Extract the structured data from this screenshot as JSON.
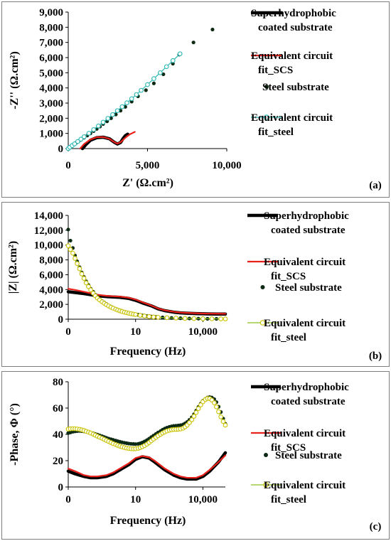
{
  "colors": {
    "scs": "#000000",
    "fit_scs": "#e8211b",
    "steel": "#0d2a14",
    "fit_steel_a": "#2ab7b2",
    "fit_steel": "#c9c200",
    "fit_steel_line": "#86c21e"
  },
  "legend": {
    "scs": [
      "Superhydrophobic",
      "coated substrate"
    ],
    "fit_scs": [
      "Equivalent circuit",
      "fit_SCS"
    ],
    "steel": [
      "Steel substrate"
    ],
    "fit_steel": [
      "Equivalent circuit",
      "fit_steel"
    ]
  },
  "chart_data": [
    {
      "panel_label": "(a)",
      "type": "scatter",
      "xlabel": "Z' (Ω.cm²)",
      "ylabel": "-Z'' (Ω.cm²)",
      "xlim": [
        0,
        10000
      ],
      "ylim": [
        0,
        9000
      ],
      "x_ticks": [
        0,
        5000,
        10000
      ],
      "x_tick_labels": [
        "0",
        "5,000",
        "10,000"
      ],
      "y_ticks": [
        0,
        1000,
        2000,
        3000,
        4000,
        5000,
        6000,
        7000,
        8000,
        9000
      ],
      "y_tick_labels": [
        "0",
        "1,000",
        "2,000",
        "3,000",
        "4,000",
        "5,000",
        "6,000",
        "7,000",
        "8,000",
        "9,000"
      ],
      "legend_position": "right",
      "series": [
        {
          "name": "Superhydrophobic coated substrate",
          "style": "thick-line",
          "x": [
            900,
            1100,
            1400,
            1800,
            2200,
            2600,
            2900,
            3100,
            3300,
            3450,
            3600,
            3750
          ],
          "y": [
            0,
            250,
            550,
            720,
            750,
            650,
            420,
            300,
            400,
            650,
            850,
            950
          ]
        },
        {
          "name": "Equivalent circuit fit_SCS",
          "style": "line",
          "x": [
            750,
            1000,
            1400,
            1800,
            2200,
            2600,
            2900,
            3100,
            3300,
            3500,
            3700,
            3900,
            4200
          ],
          "y": [
            0,
            300,
            600,
            750,
            760,
            640,
            430,
            330,
            420,
            620,
            800,
            950,
            1100
          ]
        },
        {
          "name": "Steel substrate",
          "style": "dots",
          "x": [
            0,
            50,
            100,
            150,
            200,
            300,
            400,
            500,
            650,
            800,
            1000,
            1200,
            1400,
            1600,
            1800,
            2000,
            2200,
            2450,
            2700,
            3000,
            3300,
            3600,
            4000,
            4400,
            4900,
            5400,
            6000,
            6600,
            7000,
            7900,
            9100
          ],
          "y": [
            0,
            30,
            80,
            120,
            160,
            230,
            300,
            380,
            480,
            580,
            720,
            860,
            1000,
            1150,
            1300,
            1450,
            1620,
            1800,
            2000,
            2250,
            2500,
            2750,
            3100,
            3450,
            3850,
            4300,
            4900,
            5600,
            6200,
            7000,
            7850
          ]
        },
        {
          "name": "Equivalent circuit fit_steel",
          "style": "open-line",
          "x": [
            0,
            100,
            250,
            400,
            600,
            800,
            1000,
            1300,
            1600,
            1900,
            2200,
            2500,
            2800,
            3100,
            3400,
            3700,
            4000,
            4300,
            4600,
            5000,
            5400,
            5800,
            6200,
            6600,
            7050
          ],
          "y": [
            0,
            90,
            200,
            310,
            470,
            620,
            780,
            1010,
            1250,
            1490,
            1740,
            1990,
            2240,
            2500,
            2760,
            3020,
            3290,
            3560,
            3840,
            4220,
            4610,
            5000,
            5400,
            5800,
            6250
          ]
        }
      ]
    },
    {
      "panel_label": "(b)",
      "type": "scatter",
      "xlabel": "Frequency (Hz)",
      "ylabel": "|Z| (Ω.cm²)",
      "xscale": "log",
      "xlim": [
        0.01,
        100000
      ],
      "ylim": [
        0,
        14000
      ],
      "x_ticks": [
        0.01,
        10,
        10000
      ],
      "x_tick_labels": [
        "0",
        "10",
        "10,000"
      ],
      "y_ticks": [
        0,
        2000,
        4000,
        6000,
        8000,
        10000,
        12000,
        14000
      ],
      "y_tick_labels": [
        "0",
        "2,000",
        "4,000",
        "6,000",
        "8,000",
        "10,000",
        "12,000",
        "14,000"
      ],
      "legend_position": "right",
      "series": [
        {
          "name": "Superhydrophobic coated substrate",
          "style": "thick-line",
          "x": [
            0.01,
            0.02,
            0.05,
            0.1,
            0.2,
            0.5,
            1,
            2,
            5,
            10,
            20,
            50,
            100,
            200,
            500,
            1000,
            2000,
            5000,
            10000,
            20000,
            50000,
            100000
          ],
          "y": [
            3700,
            3600,
            3450,
            3300,
            3150,
            3050,
            3000,
            2950,
            2800,
            2550,
            2200,
            1800,
            1400,
            1150,
            950,
            850,
            800,
            760,
            730,
            710,
            700,
            690
          ]
        },
        {
          "name": "Equivalent circuit fit_SCS",
          "style": "line",
          "x": [
            0.01,
            0.02,
            0.05,
            0.1,
            0.2,
            0.5,
            1,
            2,
            5,
            10,
            20,
            50,
            100,
            200,
            500,
            1000,
            2000,
            5000,
            10000,
            20000,
            50000,
            100000
          ],
          "y": [
            4100,
            3950,
            3700,
            3500,
            3300,
            3150,
            3100,
            3050,
            2900,
            2650,
            2300,
            1850,
            1450,
            1200,
            1000,
            900,
            850,
            800,
            770,
            750,
            740,
            730
          ]
        },
        {
          "name": "Steel substrate",
          "style": "dots",
          "x": [
            0.01,
            0.0125,
            0.016,
            0.02,
            0.025,
            0.032,
            0.04,
            0.05,
            0.063,
            0.08,
            0.1,
            0.13,
            0.16,
            0.2,
            0.25,
            0.32,
            0.4,
            0.5,
            0.63,
            0.8,
            1,
            1.3,
            1.6,
            2,
            2.5,
            3.2,
            4,
            5,
            6.3,
            8,
            10,
            13,
            16,
            20,
            25,
            32,
            40,
            50,
            63,
            80,
            100,
            160,
            250,
            400,
            630,
            1000,
            1600,
            2500,
            4000,
            6300,
            10000,
            16000,
            25000,
            40000,
            63000,
            100000
          ],
          "y": [
            12100,
            10600,
            9600,
            8600,
            7800,
            7000,
            6300,
            5700,
            5100,
            4600,
            4100,
            3700,
            3300,
            3000,
            2700,
            2450,
            2250,
            2050,
            1850,
            1700,
            1550,
            1400,
            1300,
            1200,
            1100,
            1000,
            920,
            850,
            780,
            720,
            660,
            600,
            550,
            500,
            460,
            420,
            390,
            360,
            330,
            300,
            280,
            240,
            200,
            170,
            150,
            130,
            110,
            100,
            90,
            80,
            70,
            60,
            55,
            50,
            45,
            40
          ]
        },
        {
          "name": "Equivalent circuit fit_steel",
          "style": "open-line",
          "x": [
            0.01,
            0.0125,
            0.016,
            0.02,
            0.025,
            0.032,
            0.04,
            0.05,
            0.063,
            0.08,
            0.1,
            0.13,
            0.16,
            0.2,
            0.25,
            0.32,
            0.4,
            0.5,
            0.63,
            0.8,
            1,
            1.3,
            1.6,
            2,
            2.5,
            3.2,
            4,
            5,
            6.3,
            8,
            10,
            16,
            25,
            40,
            63,
            100,
            250,
            630,
            1600,
            4000,
            10000,
            25000,
            63000,
            100000
          ],
          "y": [
            9900,
            9400,
            8900,
            8200,
            7500,
            6800,
            6100,
            5500,
            4900,
            4400,
            3950,
            3500,
            3150,
            2850,
            2600,
            2350,
            2150,
            1950,
            1780,
            1620,
            1480,
            1340,
            1230,
            1130,
            1040,
            950,
            870,
            800,
            740,
            680,
            630,
            520,
            430,
            360,
            300,
            260,
            200,
            150,
            110,
            90,
            70,
            55,
            45,
            40
          ]
        }
      ]
    },
    {
      "panel_label": "(c)",
      "type": "scatter",
      "xlabel": "Frequency (Hz)",
      "ylabel": "-Phase, Φ (°)",
      "xscale": "log",
      "xlim": [
        0.01,
        100000
      ],
      "ylim": [
        0,
        80
      ],
      "x_ticks": [
        0.01,
        10,
        10000
      ],
      "x_tick_labels": [
        "0",
        "10",
        "10,000"
      ],
      "y_ticks": [
        0,
        20,
        40,
        60,
        80
      ],
      "y_tick_labels": [
        "0",
        "20",
        "40",
        "60",
        "80"
      ],
      "legend_position": "right",
      "series": [
        {
          "name": "Superhydrophobic coated substrate",
          "style": "thick-line",
          "x": [
            0.01,
            0.02,
            0.05,
            0.1,
            0.2,
            0.5,
            1,
            2,
            5,
            10,
            20,
            40,
            70,
            100,
            200,
            500,
            1000,
            2000,
            5000,
            10000,
            20000,
            50000,
            100000
          ],
          "y": [
            12,
            10,
            8,
            7,
            7,
            8,
            10,
            13,
            17,
            21,
            23,
            22,
            19,
            17,
            13,
            9,
            7,
            6,
            6,
            8,
            12,
            19,
            26
          ]
        },
        {
          "name": "Equivalent circuit fit_SCS",
          "style": "line",
          "x": [
            0.01,
            0.02,
            0.05,
            0.1,
            0.2,
            0.5,
            1,
            2,
            5,
            10,
            20,
            40,
            70,
            100,
            200,
            500,
            1000,
            2000,
            5000,
            10000,
            20000,
            50000,
            100000
          ],
          "y": [
            14,
            12,
            9,
            8,
            8,
            9,
            11,
            14,
            18,
            22,
            23.5,
            22.5,
            20,
            18,
            14,
            10,
            8,
            7,
            7,
            9,
            13,
            19,
            24
          ]
        },
        {
          "name": "Steel substrate",
          "style": "dots",
          "x": [
            0.01,
            0.0125,
            0.016,
            0.02,
            0.025,
            0.032,
            0.04,
            0.05,
            0.063,
            0.08,
            0.1,
            0.13,
            0.16,
            0.2,
            0.25,
            0.32,
            0.4,
            0.5,
            0.63,
            0.8,
            1,
            1.3,
            1.6,
            2,
            2.5,
            3.2,
            4,
            5,
            6.3,
            8,
            10,
            13,
            16,
            20,
            25,
            32,
            40,
            50,
            63,
            80,
            100,
            130,
            160,
            200,
            250,
            320,
            400,
            500,
            630,
            800,
            1000,
            1300,
            1600,
            2000,
            2500,
            3200,
            4000,
            5000,
            6300,
            8000,
            10000,
            13000,
            16000,
            20000,
            25000,
            32000,
            40000,
            50000,
            63000,
            80000,
            100000
          ],
          "y": [
            41,
            41.5,
            42,
            42.3,
            42.5,
            42.6,
            42.5,
            42.3,
            42,
            41.6,
            41.2,
            40.8,
            40.3,
            39.8,
            39.2,
            38.6,
            38,
            37.4,
            36.8,
            36.3,
            35.8,
            35.3,
            34.8,
            34.4,
            34,
            33.6,
            33.3,
            33,
            32.8,
            32.7,
            32.6,
            32.8,
            33.2,
            33.8,
            34.6,
            35.6,
            36.7,
            37.9,
            39.1,
            40.3,
            41.4,
            42.5,
            43.5,
            44.4,
            45.1,
            45.7,
            46.1,
            46.4,
            46.6,
            46.8,
            47,
            47.5,
            48.3,
            49.5,
            51,
            53,
            55.3,
            58,
            60.8,
            63.3,
            65.5,
            67,
            68,
            68.3,
            68,
            66.8,
            64.5,
            61,
            57,
            52,
            48
          ]
        },
        {
          "name": "Equivalent circuit fit_steel",
          "style": "open-line",
          "x": [
            0.01,
            0.0125,
            0.016,
            0.02,
            0.025,
            0.032,
            0.04,
            0.05,
            0.063,
            0.08,
            0.1,
            0.13,
            0.16,
            0.2,
            0.25,
            0.32,
            0.4,
            0.5,
            0.63,
            0.8,
            1,
            1.3,
            1.6,
            2,
            2.5,
            3.2,
            4,
            5,
            6.3,
            8,
            10,
            13,
            16,
            20,
            25,
            32,
            40,
            50,
            63,
            80,
            100,
            130,
            160,
            200,
            250,
            320,
            400,
            500,
            630,
            800,
            1000,
            1300,
            1600,
            2000,
            2500,
            3200,
            4000,
            5000,
            6300,
            8000,
            10000,
            13000,
            16000,
            20000,
            25000,
            32000,
            40000,
            50000,
            63000,
            80000,
            100000
          ],
          "y": [
            44,
            44.2,
            44.3,
            44.3,
            44.1,
            43.8,
            43.4,
            42.9,
            42.3,
            41.7,
            41,
            40.2,
            39.4,
            38.6,
            37.8,
            37,
            36.2,
            35.4,
            34.6,
            33.8,
            33,
            32.3,
            31.6,
            31,
            30.5,
            30,
            29.6,
            29.3,
            29.1,
            29,
            29.1,
            29.4,
            29.9,
            30.6,
            31.5,
            32.6,
            33.8,
            35.1,
            36.4,
            37.7,
            38.9,
            40,
            41,
            41.9,
            42.6,
            43.1,
            43.5,
            43.7,
            43.8,
            43.9,
            44.1,
            44.7,
            45.7,
            47.1,
            48.9,
            51.1,
            53.7,
            56.6,
            59.6,
            62.4,
            64.8,
            66.5,
            67.3,
            67.2,
            66.1,
            64,
            60.9,
            57.2,
            53.3,
            49.8,
            47
          ]
        }
      ]
    }
  ]
}
